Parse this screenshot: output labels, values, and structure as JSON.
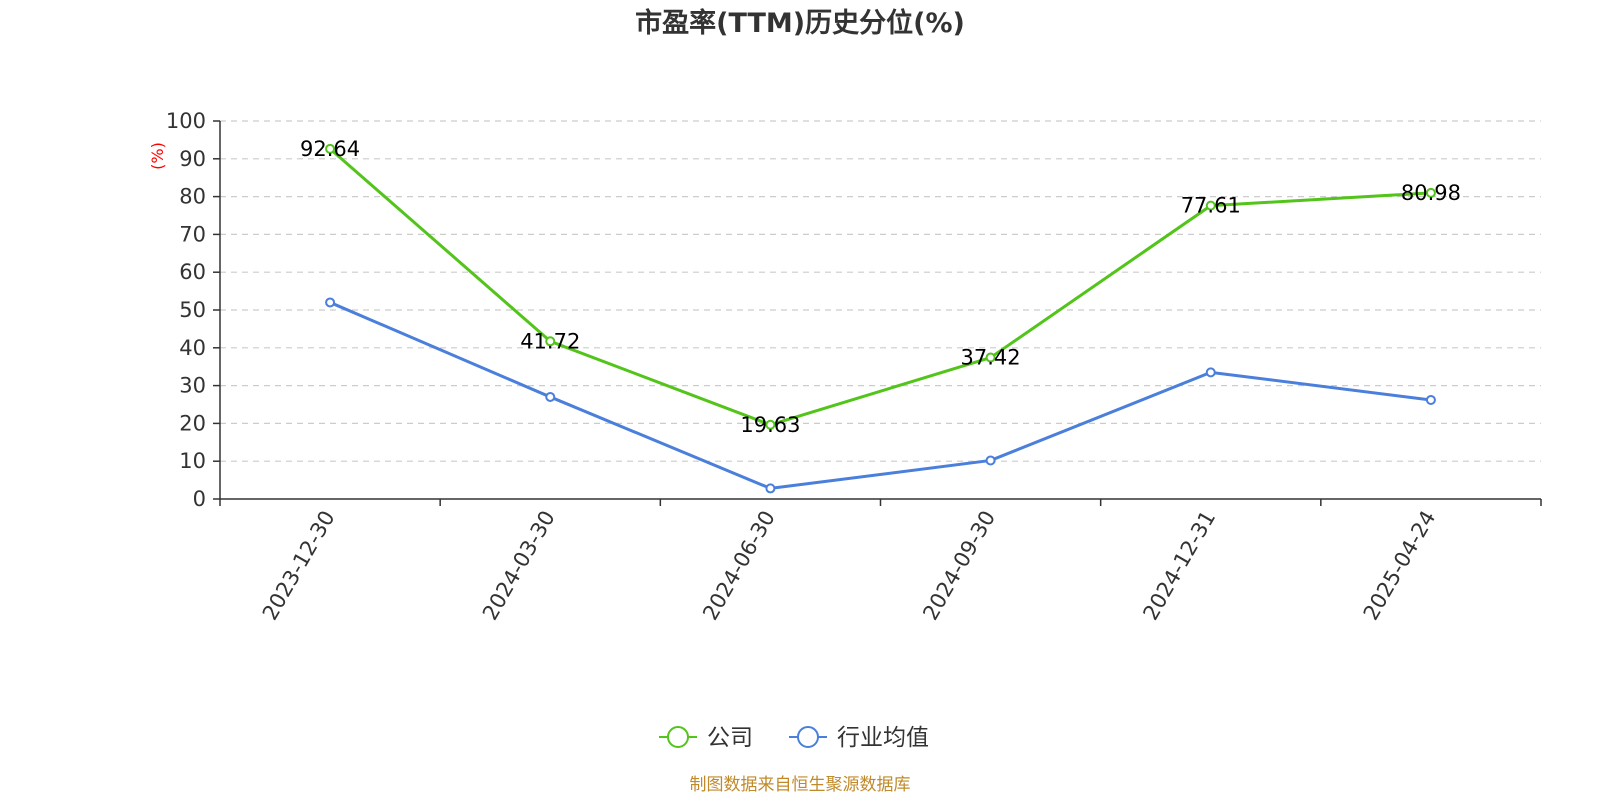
{
  "chart_data": {
    "type": "line",
    "title": "市盈率(TTM)历史分位(%)",
    "ylabel": "(%)",
    "xlabel": "",
    "ylim": [
      0,
      100
    ],
    "yticks": [
      "0",
      "10",
      "20",
      "30",
      "40",
      "50",
      "60",
      "70",
      "80",
      "90",
      "100"
    ],
    "categories": [
      "2023-12-30",
      "2024-03-30",
      "2024-06-30",
      "2024-09-30",
      "2024-12-31",
      "2025-04-24"
    ],
    "series": [
      {
        "name": "公司",
        "color": "#52c41a",
        "values": [
          92.64,
          41.72,
          19.63,
          37.42,
          77.61,
          80.98
        ],
        "labels": [
          "92.64",
          "41.72",
          "19.63",
          "37.42",
          "77.61",
          "80.98"
        ]
      },
      {
        "name": "行业均值",
        "color": "#4a7fdb",
        "values": [
          52.0,
          27.0,
          2.8,
          10.2,
          33.5,
          26.2
        ]
      }
    ],
    "grid": true,
    "legend_position": "bottom-center",
    "source": "制图数据来自恒生聚源数据库"
  }
}
